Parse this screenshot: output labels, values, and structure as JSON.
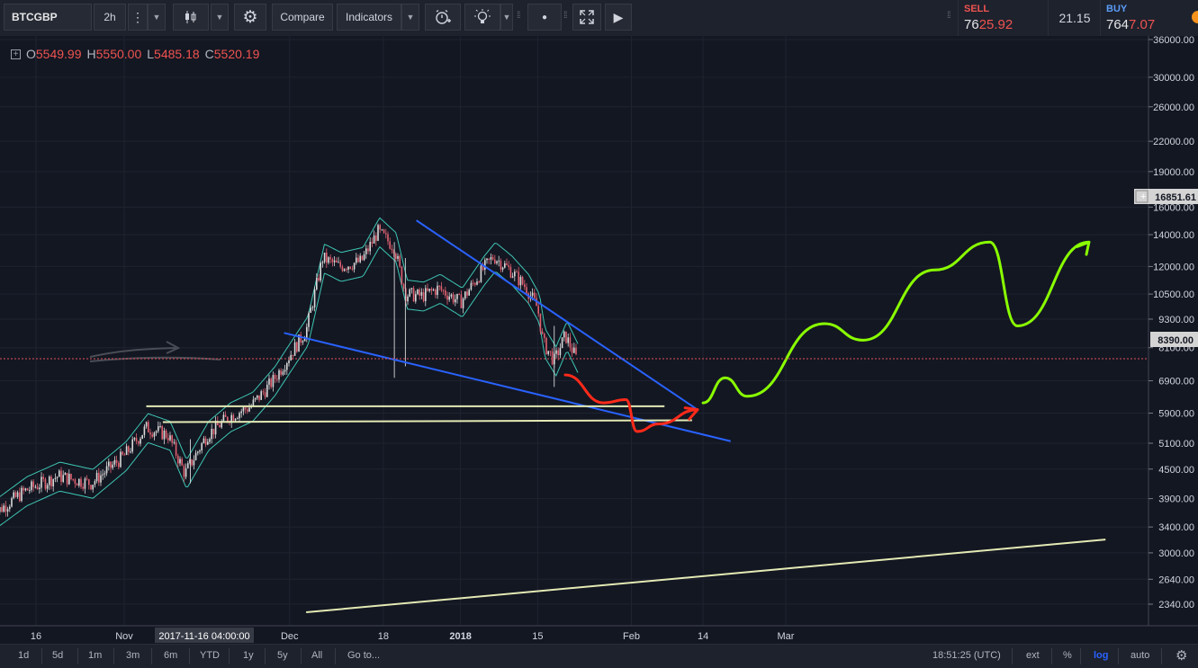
{
  "toolbar": {
    "symbol": "BTCGBP",
    "interval": "2h",
    "compare_label": "Compare",
    "indicators_label": "Indicators"
  },
  "quote": {
    "sell_label": "SELL",
    "sell_price_main": "76",
    "sell_price_big": "25.92",
    "spread": "21.15",
    "buy_label": "BUY",
    "buy_price_main": "764",
    "buy_price_big": "7.07"
  },
  "legend": {
    "o_label": "O",
    "o_value": "5549.99",
    "h_label": "H",
    "h_value": "5550.00",
    "l_label": "L",
    "l_value": "5485.18",
    "c_label": "C",
    "c_value": "5520.19"
  },
  "bottom_bar": {
    "ranges": [
      "1d",
      "5d",
      "1m",
      "3m",
      "6m",
      "YTD",
      "1y",
      "5y",
      "All"
    ],
    "goto_label": "Go to...",
    "time": "18:51:25 (UTC)",
    "ext_label": "ext",
    "pct_label": "%",
    "log_label": "log",
    "auto_label": "auto"
  },
  "colors": {
    "background": "#131722",
    "candle_up": "#d9d9d9",
    "candle_down": "#e06070",
    "band": "#3ec6b4",
    "trendline_blue": "#2962ff",
    "support_line": "#e4eab4",
    "projection_red": "#ff2a1a",
    "projection_green": "#8aff00",
    "last_price_badge": "#d4d4d4",
    "current_price_line": "#e0505a"
  },
  "chart_data": {
    "type": "line",
    "scale": "log",
    "symbol": "BTCGBP",
    "interval": "2h",
    "y_ticks": [
      2340,
      2640,
      3000,
      3400,
      3900,
      4500,
      5100,
      5900,
      6900,
      8100,
      9300,
      10500,
      12000,
      14000,
      16000,
      19000,
      22000,
      26000,
      30000,
      36000
    ],
    "y_tick_labels": [
      "2340.00",
      "2640.00",
      "3000.00",
      "3400.00",
      "3900.00",
      "4500.00",
      "5100.00",
      "5900.00",
      "6900.00",
      "8100.00",
      "9300.00",
      "10500.00",
      "12000.00",
      "14000.00",
      "16000.00",
      "19000.00",
      "22000.00",
      "26000.00",
      "30000.00",
      "36000.00"
    ],
    "x_tick_labels": [
      "16",
      "Nov",
      "Dec",
      "18",
      "2018",
      "15",
      "Feb",
      "14",
      "Mar"
    ],
    "x_tick_dates": [
      "2017-10-16",
      "2017-11-01",
      "2017-12-01",
      "2017-12-18",
      "2018-01-01",
      "2018-01-15",
      "2018-02-01",
      "2018-02-14",
      "2018-03-01"
    ],
    "crosshair_time_label": "2017-11-16 04:00:00",
    "price_marker_label": "16851.61",
    "price_marker_value": 16851.61,
    "last_price_label": "8390.00",
    "last_price": 8390,
    "current_price_line_value": 7750,
    "price_series": {
      "name": "BTCGBP",
      "x": [
        "2017-10-08",
        "2017-10-14",
        "2017-10-20",
        "2017-10-26",
        "2017-11-01",
        "2017-11-05",
        "2017-11-09",
        "2017-11-12",
        "2017-11-16",
        "2017-11-20",
        "2017-11-24",
        "2017-11-28",
        "2017-12-01",
        "2017-12-04",
        "2017-12-07",
        "2017-12-10",
        "2017-12-14",
        "2017-12-17",
        "2017-12-20",
        "2017-12-22",
        "2017-12-25",
        "2017-12-28",
        "2018-01-01",
        "2018-01-05",
        "2018-01-07",
        "2018-01-10",
        "2018-01-13",
        "2018-01-15",
        "2018-01-16",
        "2018-01-18",
        "2018-01-20",
        "2018-01-22"
      ],
      "close": [
        3600,
        4050,
        4350,
        4200,
        4800,
        5500,
        5300,
        4400,
        5300,
        5800,
        6100,
        6900,
        7800,
        8800,
        12500,
        12000,
        12300,
        14200,
        13200,
        10500,
        10400,
        10800,
        10100,
        11800,
        12600,
        11800,
        10800,
        9800,
        8300,
        7600,
        8600,
        7700
      ]
    },
    "series": [
      {
        "name": "Falling trendline (upper)",
        "x": [
          "2017-12-24",
          "2018-02-13"
        ],
        "y": [
          15000,
          6000
        ]
      },
      {
        "name": "Falling trendline (lower)",
        "x": [
          "2017-11-30",
          "2018-02-19"
        ],
        "y": [
          8700,
          5150
        ]
      },
      {
        "name": "Support line 1",
        "x": [
          "2017-11-05",
          "2018-02-07"
        ],
        "y": [
          6100,
          6100
        ]
      },
      {
        "name": "Support line 2",
        "x": [
          "2017-11-08",
          "2018-02-12"
        ],
        "y": [
          5650,
          5700
        ]
      },
      {
        "name": "Long-term trendline",
        "x": [
          "2017-12-04",
          "2018-04-28"
        ],
        "y": [
          2250,
          3200
        ]
      },
      {
        "name": "Projection (red)",
        "x": [
          "2018-01-20",
          "2018-01-27",
          "2018-01-31",
          "2018-02-02",
          "2018-02-06",
          "2018-02-13"
        ],
        "y": [
          7100,
          6200,
          6300,
          5400,
          5600,
          6000
        ]
      },
      {
        "name": "Projection (green)",
        "x": [
          "2018-02-14",
          "2018-02-18",
          "2018-02-22",
          "2018-03-08",
          "2018-03-15",
          "2018-03-28",
          "2018-04-07",
          "2018-04-12",
          "2018-04-25"
        ],
        "y": [
          6200,
          7000,
          6400,
          9100,
          8400,
          11800,
          13500,
          9000,
          13500
        ]
      }
    ]
  }
}
